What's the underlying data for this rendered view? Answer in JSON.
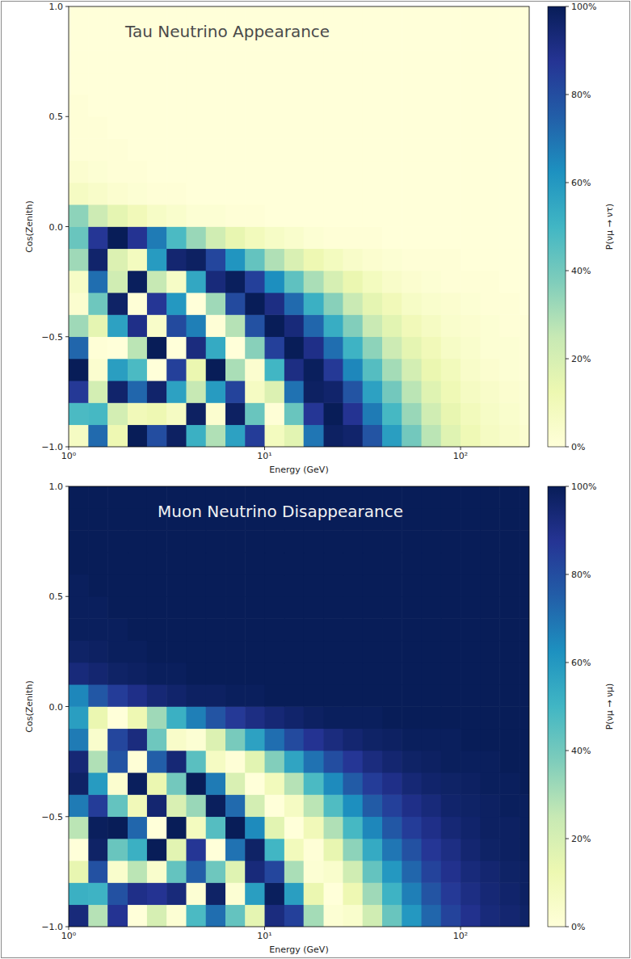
{
  "chart_data": [
    {
      "type": "heatmap",
      "title": "Tau Neutrino Appearance",
      "x_label": "Energy (GeV)",
      "y_label": "Cos(Zenith)",
      "log": "x",
      "xlim": [
        1,
        224
      ],
      "xticks": [
        {
          "value": 1,
          "label": "10⁰"
        },
        {
          "value": 10,
          "label": "10¹"
        },
        {
          "value": 100,
          "label": "10²"
        }
      ],
      "ylim": [
        -1,
        1
      ],
      "yticks": [
        {
          "value": -1,
          "label": "−1.0"
        },
        {
          "value": -0.5,
          "label": "−0.5"
        },
        {
          "value": 0,
          "label": "0.0"
        },
        {
          "value": 0.5,
          "label": "0.5"
        },
        {
          "value": 1,
          "label": "1.0"
        }
      ],
      "x_edges": [
        1,
        1.26,
        1.58,
        2,
        2.51,
        3.16,
        3.98,
        5.01,
        6.31,
        7.94,
        10,
        12.6,
        15.8,
        20,
        25.1,
        31.6,
        39.8,
        50.1,
        63.1,
        79.4,
        100,
        126,
        158,
        200,
        224
      ],
      "y_edges": [
        -1,
        -0.9,
        -0.8,
        -0.7,
        -0.6,
        -0.5,
        -0.4,
        -0.3,
        -0.2,
        -0.1,
        0,
        0.1,
        0.2,
        0.3,
        0.4,
        0.5,
        0.6,
        0.7,
        0.8,
        0.9,
        1
      ],
      "cells": [
        [
          7,
          72,
          12,
          100,
          80,
          98,
          52,
          29,
          57,
          85,
          8,
          16,
          69,
          98,
          96,
          78,
          58,
          40,
          27,
          17,
          11,
          7,
          5,
          3
        ],
        [
          48,
          49,
          21,
          10,
          12,
          7,
          98,
          3,
          98,
          42,
          1,
          42,
          87,
          100,
          88,
          68,
          49,
          33,
          22,
          14,
          9,
          6,
          4,
          2
        ],
        [
          86,
          21,
          96,
          73,
          96,
          57,
          25,
          59,
          83,
          7,
          18,
          70,
          98,
          96,
          78,
          57,
          40,
          27,
          17,
          11,
          7,
          5,
          3,
          2
        ],
        [
          100,
          3,
          58,
          48,
          0,
          84,
          13,
          100,
          30,
          3,
          50,
          91,
          99,
          86,
          65,
          46,
          31,
          21,
          13,
          9,
          5,
          3,
          2,
          1
        ],
        [
          73,
          1,
          0,
          27,
          100,
          0,
          92,
          54,
          0,
          36,
          84,
          100,
          90,
          71,
          51,
          35,
          23,
          15,
          10,
          6,
          4,
          2,
          2,
          1
        ],
        [
          32,
          15,
          57,
          90,
          5,
          81,
          67,
          1,
          28,
          79,
          100,
          93,
          73,
          53,
          37,
          24,
          16,
          10,
          7,
          4,
          3,
          2,
          1,
          1
        ],
        [
          3,
          41,
          97,
          1,
          87,
          60,
          0,
          32,
          81,
          100,
          91,
          72,
          52,
          36,
          24,
          15,
          10,
          6,
          4,
          3,
          2,
          1,
          1,
          0
        ],
        [
          6,
          71,
          22,
          99,
          25,
          6,
          55,
          93,
          99,
          84,
          63,
          44,
          30,
          20,
          13,
          8,
          5,
          3,
          2,
          1,
          1,
          1,
          0,
          0
        ],
        [
          32,
          96,
          18,
          8,
          59,
          95,
          98,
          82,
          61,
          43,
          29,
          19,
          12,
          8,
          5,
          3,
          2,
          1,
          1,
          1,
          0,
          0,
          0,
          0
        ],
        [
          42,
          87,
          100,
          88,
          68,
          48,
          33,
          22,
          14,
          9,
          6,
          4,
          2,
          1,
          1,
          1,
          0,
          0,
          0,
          0,
          0,
          0,
          0,
          0
        ],
        [
          35,
          23,
          15,
          10,
          6,
          4,
          2,
          2,
          1,
          1,
          0,
          0,
          0,
          0,
          0,
          0,
          0,
          0,
          0,
          0,
          0,
          0,
          0,
          0
        ],
        [
          7,
          5,
          3,
          2,
          1,
          1,
          0,
          0,
          0,
          0,
          0,
          0,
          0,
          0,
          0,
          0,
          0,
          0,
          0,
          0,
          0,
          0,
          0,
          0
        ],
        [
          3,
          2,
          1,
          1,
          0,
          0,
          0,
          0,
          0,
          0,
          0,
          0,
          0,
          0,
          0,
          0,
          0,
          0,
          0,
          0,
          0,
          0,
          0,
          0
        ],
        [
          1,
          1,
          1,
          0,
          0,
          0,
          0,
          0,
          0,
          0,
          0,
          0,
          0,
          0,
          0,
          0,
          0,
          0,
          0,
          0,
          0,
          0,
          0,
          0
        ],
        [
          1,
          1,
          0,
          0,
          0,
          0,
          0,
          0,
          0,
          0,
          0,
          0,
          0,
          0,
          0,
          0,
          0,
          0,
          0,
          0,
          0,
          0,
          0,
          0
        ],
        [
          1,
          0,
          0,
          0,
          0,
          0,
          0,
          0,
          0,
          0,
          0,
          0,
          0,
          0,
          0,
          0,
          0,
          0,
          0,
          0,
          0,
          0,
          0,
          0
        ],
        [
          0,
          0,
          0,
          0,
          0,
          0,
          0,
          0,
          0,
          0,
          0,
          0,
          0,
          0,
          0,
          0,
          0,
          0,
          0,
          0,
          0,
          0,
          0,
          0
        ],
        [
          0,
          0,
          0,
          0,
          0,
          0,
          0,
          0,
          0,
          0,
          0,
          0,
          0,
          0,
          0,
          0,
          0,
          0,
          0,
          0,
          0,
          0,
          0,
          0
        ],
        [
          0,
          0,
          0,
          0,
          0,
          0,
          0,
          0,
          0,
          0,
          0,
          0,
          0,
          0,
          0,
          0,
          0,
          0,
          0,
          0,
          0,
          0,
          0,
          0
        ],
        [
          0,
          0,
          0,
          0,
          0,
          0,
          0,
          0,
          0,
          0,
          0,
          0,
          0,
          0,
          0,
          0,
          0,
          0,
          0,
          0,
          0,
          0,
          0,
          0
        ]
      ],
      "clim": [
        0,
        100
      ],
      "cticks": [
        {
          "value": 0,
          "label": "0%"
        },
        {
          "value": 20,
          "label": "20%"
        },
        {
          "value": 40,
          "label": "40%"
        },
        {
          "value": 60,
          "label": "60%"
        },
        {
          "value": 80,
          "label": "80%"
        },
        {
          "value": 100,
          "label": "100%"
        }
      ],
      "colorbar_label": "P(νμ → ντ)"
    },
    {
      "type": "heatmap",
      "title": "Muon Neutrino Disappearance",
      "x_label": "Energy (GeV)",
      "y_label": "Cos(Zenith)",
      "log": "x",
      "xlim": [
        1,
        224
      ],
      "xticks": [
        {
          "value": 1,
          "label": "10⁰"
        },
        {
          "value": 10,
          "label": "10¹"
        },
        {
          "value": 100,
          "label": "10²"
        }
      ],
      "ylim": [
        -1,
        1
      ],
      "yticks": [
        {
          "value": -1,
          "label": "−1.0"
        },
        {
          "value": -0.5,
          "label": "−0.5"
        },
        {
          "value": 0,
          "label": "0.0"
        },
        {
          "value": 0.5,
          "label": "0.5"
        },
        {
          "value": 1,
          "label": "1.0"
        }
      ],
      "x_edges": [
        1,
        1.26,
        1.58,
        2,
        2.51,
        3.16,
        3.98,
        5.01,
        6.31,
        7.94,
        10,
        12.6,
        15.8,
        20,
        25.1,
        31.6,
        39.8,
        50.1,
        63.1,
        79.4,
        100,
        126,
        158,
        200,
        224
      ],
      "y_edges": [
        -1,
        -0.9,
        -0.8,
        -0.7,
        -0.6,
        -0.5,
        -0.4,
        -0.3,
        -0.2,
        -0.1,
        0,
        0.1,
        0.2,
        0.3,
        0.4,
        0.5,
        0.6,
        0.7,
        0.8,
        0.9,
        1
      ],
      "cells": [
        [
          93,
          28,
          88,
          0,
          20,
          2,
          48,
          71,
          43,
          15,
          92,
          84,
          31,
          2,
          4,
          22,
          42,
          60,
          73,
          83,
          89,
          93,
          95,
          97
        ],
        [
          52,
          51,
          79,
          90,
          88,
          93,
          2,
          97,
          2,
          58,
          99,
          58,
          13,
          0,
          12,
          32,
          51,
          67,
          78,
          86,
          91,
          94,
          96,
          98
        ],
        [
          14,
          79,
          4,
          27,
          4,
          43,
          75,
          41,
          17,
          93,
          82,
          30,
          2,
          4,
          22,
          43,
          60,
          73,
          83,
          89,
          93,
          95,
          97,
          98
        ],
        [
          0,
          97,
          42,
          52,
          100,
          16,
          87,
          0,
          70,
          97,
          50,
          9,
          1,
          14,
          35,
          54,
          69,
          79,
          87,
          91,
          95,
          97,
          98,
          99
        ],
        [
          27,
          99,
          100,
          73,
          0,
          100,
          8,
          46,
          100,
          64,
          16,
          0,
          10,
          29,
          49,
          65,
          77,
          85,
          90,
          94,
          96,
          98,
          98,
          99
        ],
        [
          68,
          85,
          43,
          10,
          95,
          19,
          33,
          99,
          72,
          21,
          0,
          7,
          27,
          47,
          63,
          76,
          84,
          90,
          93,
          96,
          97,
          98,
          99,
          99
        ],
        [
          97,
          59,
          3,
          99,
          13,
          40,
          100,
          68,
          19,
          0,
          9,
          28,
          48,
          64,
          76,
          85,
          90,
          94,
          96,
          97,
          98,
          99,
          99,
          100
        ],
        [
          94,
          29,
          78,
          1,
          75,
          94,
          45,
          7,
          1,
          16,
          37,
          56,
          70,
          80,
          87,
          92,
          95,
          97,
          98,
          99,
          99,
          99,
          100,
          100
        ],
        [
          68,
          4,
          82,
          92,
          41,
          5,
          2,
          18,
          39,
          57,
          71,
          81,
          88,
          92,
          95,
          97,
          98,
          99,
          99,
          99,
          100,
          100,
          100,
          100
        ],
        [
          58,
          13,
          0,
          12,
          32,
          52,
          67,
          78,
          86,
          91,
          94,
          96,
          98,
          99,
          99,
          99,
          100,
          100,
          100,
          100,
          100,
          100,
          100,
          100
        ],
        [
          65,
          77,
          85,
          90,
          94,
          96,
          98,
          98,
          99,
          99,
          100,
          100,
          100,
          100,
          100,
          100,
          100,
          100,
          100,
          100,
          100,
          100,
          100,
          100
        ],
        [
          93,
          95,
          97,
          98,
          99,
          99,
          100,
          100,
          100,
          100,
          100,
          100,
          100,
          100,
          100,
          100,
          100,
          100,
          100,
          100,
          100,
          100,
          100,
          100
        ],
        [
          97,
          98,
          99,
          99,
          100,
          100,
          100,
          100,
          100,
          100,
          100,
          100,
          100,
          100,
          100,
          100,
          100,
          100,
          100,
          100,
          100,
          100,
          100,
          100
        ],
        [
          99,
          99,
          99,
          100,
          100,
          100,
          100,
          100,
          100,
          100,
          100,
          100,
          100,
          100,
          100,
          100,
          100,
          100,
          100,
          100,
          100,
          100,
          100,
          100
        ],
        [
          99,
          99,
          100,
          100,
          100,
          100,
          100,
          100,
          100,
          100,
          100,
          100,
          100,
          100,
          100,
          100,
          100,
          100,
          100,
          100,
          100,
          100,
          100,
          100
        ],
        [
          99,
          100,
          100,
          100,
          100,
          100,
          100,
          100,
          100,
          100,
          100,
          100,
          100,
          100,
          100,
          100,
          100,
          100,
          100,
          100,
          100,
          100,
          100,
          100
        ],
        [
          100,
          100,
          100,
          100,
          100,
          100,
          100,
          100,
          100,
          100,
          100,
          100,
          100,
          100,
          100,
          100,
          100,
          100,
          100,
          100,
          100,
          100,
          100,
          100
        ],
        [
          100,
          100,
          100,
          100,
          100,
          100,
          100,
          100,
          100,
          100,
          100,
          100,
          100,
          100,
          100,
          100,
          100,
          100,
          100,
          100,
          100,
          100,
          100,
          100
        ],
        [
          100,
          100,
          100,
          100,
          100,
          100,
          100,
          100,
          100,
          100,
          100,
          100,
          100,
          100,
          100,
          100,
          100,
          100,
          100,
          100,
          100,
          100,
          100,
          100
        ],
        [
          100,
          100,
          100,
          100,
          100,
          100,
          100,
          100,
          100,
          100,
          100,
          100,
          100,
          100,
          100,
          100,
          100,
          100,
          100,
          100,
          100,
          100,
          100,
          100
        ]
      ],
      "clim": [
        0,
        100
      ],
      "cticks": [
        {
          "value": 0,
          "label": "0%"
        },
        {
          "value": 20,
          "label": "20%"
        },
        {
          "value": 40,
          "label": "40%"
        },
        {
          "value": 60,
          "label": "60%"
        },
        {
          "value": 80,
          "label": "80%"
        },
        {
          "value": 100,
          "label": "100%"
        }
      ],
      "colorbar_label": "P(νμ → νμ)"
    }
  ]
}
